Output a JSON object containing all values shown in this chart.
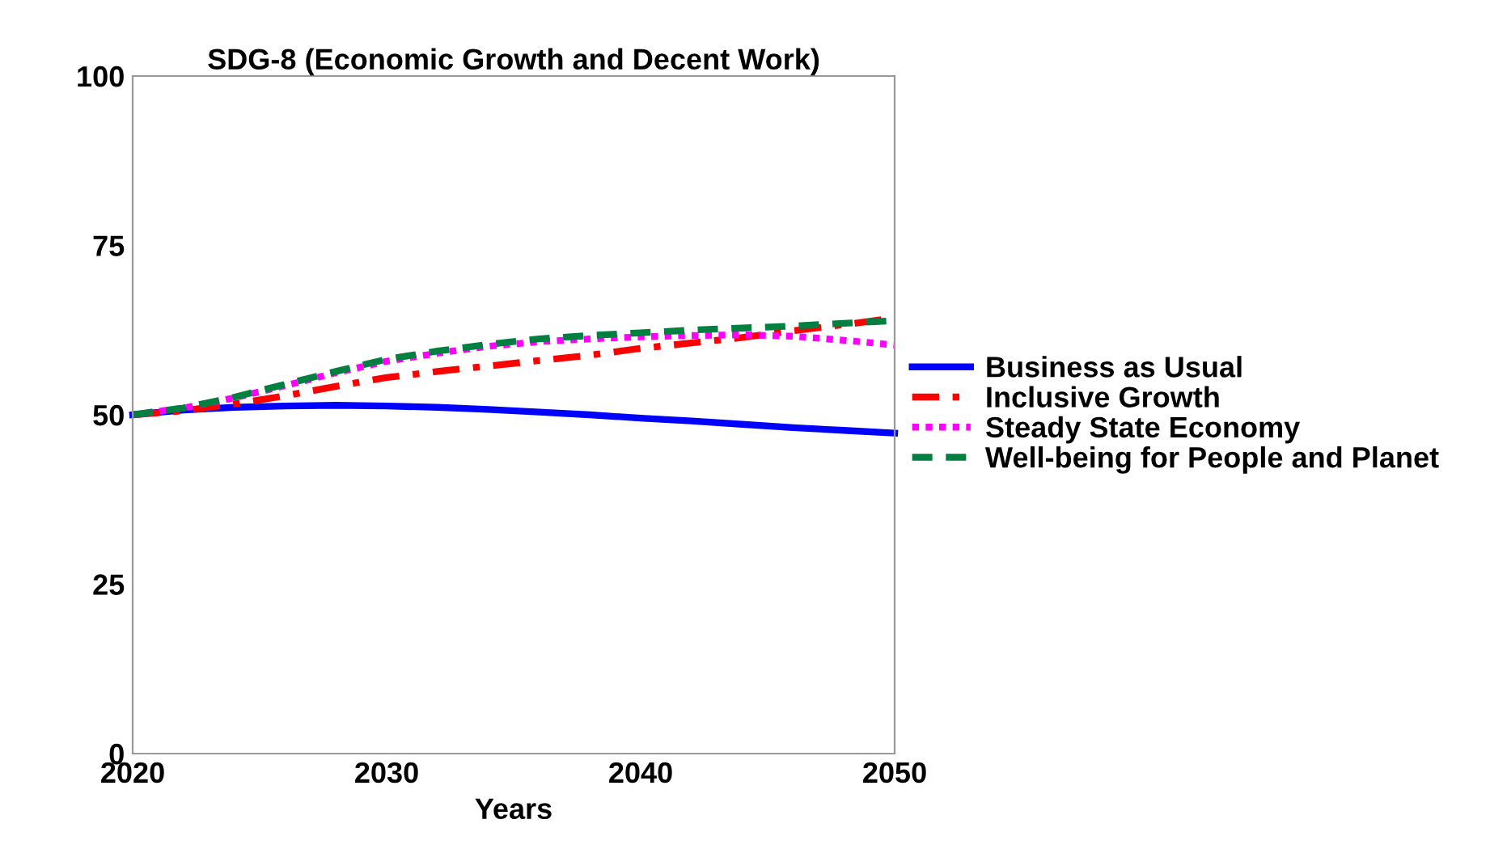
{
  "chart_data": {
    "type": "line",
    "title": "SDG-8 (Economic Growth and Decent Work)",
    "xlabel": "Years",
    "x": [
      2020,
      2022,
      2024,
      2026,
      2028,
      2030,
      2032,
      2034,
      2036,
      2038,
      2040,
      2042,
      2044,
      2046,
      2048,
      2050
    ],
    "series": [
      {
        "name": "Business as Usual",
        "color": "#0000ff",
        "line_style": "solid",
        "values": [
          50,
          50.7,
          51.1,
          51.3,
          51.4,
          51.3,
          51.1,
          50.8,
          50.4,
          50,
          49.5,
          49.1,
          48.6,
          48.1,
          47.7,
          47.3
        ]
      },
      {
        "name": "Inclusive Growth",
        "color": "#ff0000",
        "line_style": "dashdot",
        "values": [
          50,
          50.6,
          51.6,
          52.8,
          54.2,
          55.5,
          56.4,
          57.2,
          58,
          58.8,
          59.8,
          60.6,
          61.4,
          62.4,
          63.3,
          64.3
        ]
      },
      {
        "name": "Steady State Economy",
        "color": "#ff00ff",
        "line_style": "dotted",
        "values": [
          50,
          51,
          52.5,
          54.3,
          56.2,
          57.9,
          59.1,
          60.1,
          60.8,
          61.2,
          61.5,
          61.7,
          61.8,
          61.6,
          61,
          60.3
        ]
      },
      {
        "name": "Well-being for People and Planet",
        "color": "#008040",
        "line_style": "dashed",
        "values": [
          50,
          51,
          52.6,
          54.5,
          56.4,
          58.2,
          59.4,
          60.4,
          61.2,
          61.7,
          62.1,
          62.5,
          62.8,
          63.1,
          63.5,
          63.9
        ]
      }
    ],
    "xlim": [
      2020,
      2050
    ],
    "xticks": [
      2020,
      2030,
      2040,
      2050
    ],
    "ylim": [
      0,
      100
    ],
    "yticks": [
      0,
      25,
      50,
      75,
      100
    ],
    "grid": false,
    "legend": "right",
    "marker": "none"
  }
}
